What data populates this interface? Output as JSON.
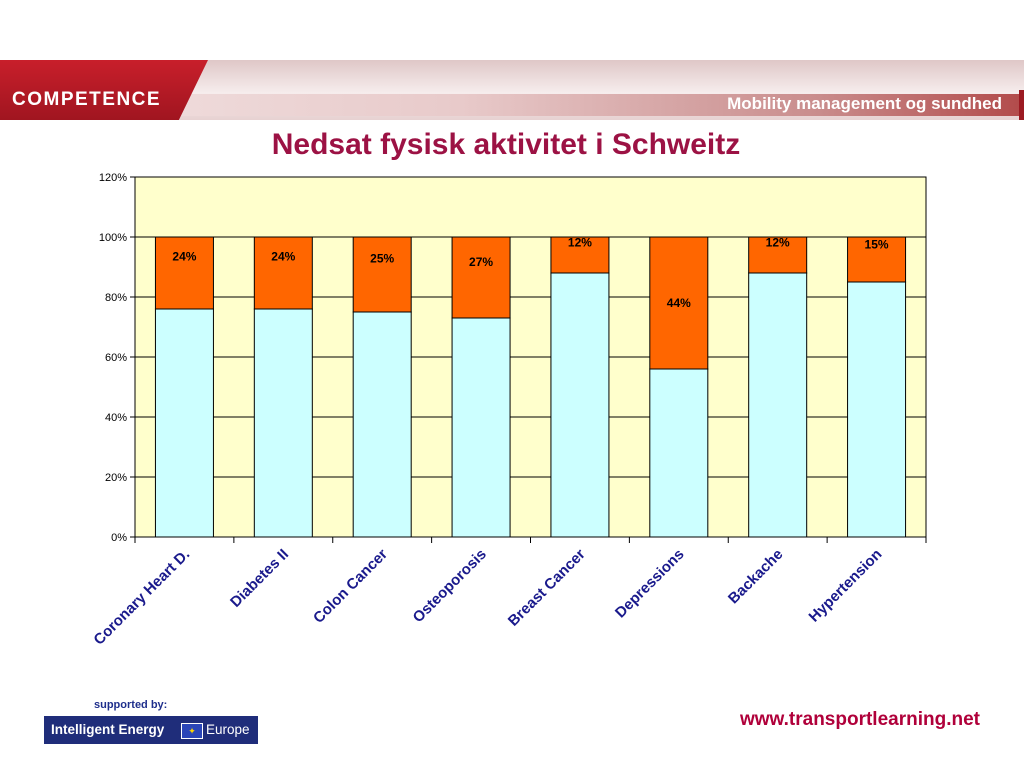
{
  "header": {
    "logo": "COMPETENCE",
    "tagline": "Mobility management og sundhed"
  },
  "title": "Nedsat fysisk aktivitet i Schweitz",
  "colors": {
    "active": "#ccffff",
    "inactive": "#ff6600",
    "plot_background": "#ffffcc",
    "title": "#9c1244",
    "brand": "#c81f2b"
  },
  "chart_data": {
    "type": "bar",
    "stacked": true,
    "percent_axis": true,
    "categories": [
      "Coronary Heart D.",
      "Diabetes II",
      "Colon Cancer",
      "Osteoporosis",
      "Breast Cancer",
      "Depressions",
      "Backache",
      "Hypertension"
    ],
    "series": [
      {
        "values": [
          76,
          76,
          75,
          73,
          88,
          56,
          88,
          85
        ],
        "color": "#ccffff"
      },
      {
        "values": [
          24,
          24,
          25,
          27,
          12,
          44,
          12,
          15
        ],
        "color": "#ff6600",
        "labels": [
          "24%",
          "24%",
          "25%",
          "27%",
          "12%",
          "44%",
          "12%",
          "15%"
        ]
      }
    ],
    "ylim": [
      0,
      120
    ],
    "yticks": [
      "0%",
      "20%",
      "40%",
      "60%",
      "80%",
      "100%",
      "120%"
    ],
    "grid": true,
    "xlabel": "",
    "ylabel": ""
  },
  "footer": {
    "supported_by": "supported by:",
    "sponsor": "Intelligent Energy",
    "sponsor_region": "Europe",
    "website": "www.transportlearning.net"
  }
}
